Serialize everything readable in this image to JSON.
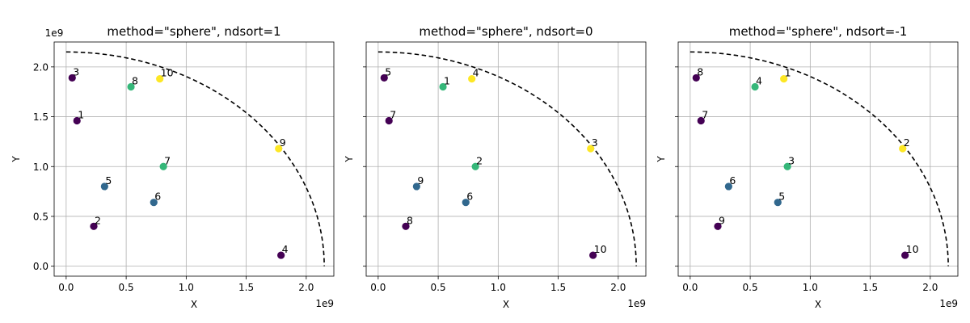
{
  "chart_data": [
    {
      "type": "scatter",
      "title": "method=\"sphere\", ndsort=1",
      "xlabel": "X",
      "ylabel": "Y",
      "x_offset_label": "1e9",
      "y_offset_label": "1e9",
      "xlim": [
        -0.1,
        2.23
      ],
      "ylim": [
        -0.1,
        2.25
      ],
      "xticks": [
        0.0,
        0.5,
        1.0,
        1.5,
        2.0
      ],
      "xtick_labels": [
        "0.0",
        "0.5",
        "1.0",
        "1.5",
        "2.0"
      ],
      "yticks": [
        0.0,
        0.5,
        1.0,
        1.5,
        2.0
      ],
      "ytick_labels": [
        "0.0",
        "0.5",
        "1.0",
        "1.5",
        "2.0"
      ],
      "grid": true,
      "show_ytick_labels": true,
      "reference_arc_radius": 2.15,
      "points": [
        {
          "x": 0.05,
          "y": 1.89,
          "label": "3",
          "color": "#440154"
        },
        {
          "x": 0.09,
          "y": 1.46,
          "label": "1",
          "color": "#440154"
        },
        {
          "x": 0.23,
          "y": 0.4,
          "label": "2",
          "color": "#440154"
        },
        {
          "x": 0.32,
          "y": 0.8,
          "label": "5",
          "color": "#31688e"
        },
        {
          "x": 0.54,
          "y": 1.8,
          "label": "8",
          "color": "#35b779"
        },
        {
          "x": 0.73,
          "y": 0.64,
          "label": "6",
          "color": "#31688e"
        },
        {
          "x": 0.78,
          "y": 1.88,
          "label": "10",
          "color": "#fde725"
        },
        {
          "x": 0.81,
          "y": 1.0,
          "label": "7",
          "color": "#35b779"
        },
        {
          "x": 1.77,
          "y": 1.18,
          "label": "9",
          "color": "#fde725"
        },
        {
          "x": 1.79,
          "y": 0.11,
          "label": "4",
          "color": "#440154"
        }
      ]
    },
    {
      "type": "scatter",
      "title": "method=\"sphere\", ndsort=0",
      "xlabel": "X",
      "ylabel": "Y",
      "x_offset_label": "1e9",
      "y_offset_label": "",
      "xlim": [
        -0.1,
        2.23
      ],
      "ylim": [
        -0.1,
        2.25
      ],
      "xticks": [
        0.0,
        0.5,
        1.0,
        1.5,
        2.0
      ],
      "xtick_labels": [
        "0.0",
        "0.5",
        "1.0",
        "1.5",
        "2.0"
      ],
      "yticks": [
        0.0,
        0.5,
        1.0,
        1.5,
        2.0
      ],
      "ytick_labels": [
        "",
        "",
        "",
        "",
        ""
      ],
      "grid": true,
      "show_ytick_labels": false,
      "reference_arc_radius": 2.15,
      "points": [
        {
          "x": 0.05,
          "y": 1.89,
          "label": "5",
          "color": "#440154"
        },
        {
          "x": 0.09,
          "y": 1.46,
          "label": "7",
          "color": "#440154"
        },
        {
          "x": 0.23,
          "y": 0.4,
          "label": "8",
          "color": "#440154"
        },
        {
          "x": 0.32,
          "y": 0.8,
          "label": "9",
          "color": "#31688e"
        },
        {
          "x": 0.54,
          "y": 1.8,
          "label": "1",
          "color": "#35b779"
        },
        {
          "x": 0.73,
          "y": 0.64,
          "label": "6",
          "color": "#31688e"
        },
        {
          "x": 0.78,
          "y": 1.88,
          "label": "4",
          "color": "#fde725"
        },
        {
          "x": 0.81,
          "y": 1.0,
          "label": "2",
          "color": "#35b779"
        },
        {
          "x": 1.77,
          "y": 1.18,
          "label": "3",
          "color": "#fde725"
        },
        {
          "x": 1.79,
          "y": 0.11,
          "label": "10",
          "color": "#440154"
        }
      ]
    },
    {
      "type": "scatter",
      "title": "method=\"sphere\", ndsort=-1",
      "xlabel": "X",
      "ylabel": "Y",
      "x_offset_label": "1e9",
      "y_offset_label": "",
      "xlim": [
        -0.1,
        2.23
      ],
      "ylim": [
        -0.1,
        2.25
      ],
      "xticks": [
        0.0,
        0.5,
        1.0,
        1.5,
        2.0
      ],
      "xtick_labels": [
        "0.0",
        "0.5",
        "1.0",
        "1.5",
        "2.0"
      ],
      "yticks": [
        0.0,
        0.5,
        1.0,
        1.5,
        2.0
      ],
      "ytick_labels": [
        "",
        "",
        "",
        "",
        ""
      ],
      "grid": true,
      "show_ytick_labels": false,
      "reference_arc_radius": 2.15,
      "points": [
        {
          "x": 0.05,
          "y": 1.89,
          "label": "8",
          "color": "#440154"
        },
        {
          "x": 0.09,
          "y": 1.46,
          "label": "7",
          "color": "#440154"
        },
        {
          "x": 0.23,
          "y": 0.4,
          "label": "9",
          "color": "#440154"
        },
        {
          "x": 0.32,
          "y": 0.8,
          "label": "6",
          "color": "#31688e"
        },
        {
          "x": 0.54,
          "y": 1.8,
          "label": "4",
          "color": "#35b779"
        },
        {
          "x": 0.73,
          "y": 0.64,
          "label": "5",
          "color": "#31688e"
        },
        {
          "x": 0.78,
          "y": 1.88,
          "label": "1",
          "color": "#fde725"
        },
        {
          "x": 0.81,
          "y": 1.0,
          "label": "3",
          "color": "#35b779"
        },
        {
          "x": 1.77,
          "y": 1.18,
          "label": "2",
          "color": "#fde725"
        },
        {
          "x": 1.79,
          "y": 0.11,
          "label": "10",
          "color": "#440154"
        }
      ]
    }
  ]
}
